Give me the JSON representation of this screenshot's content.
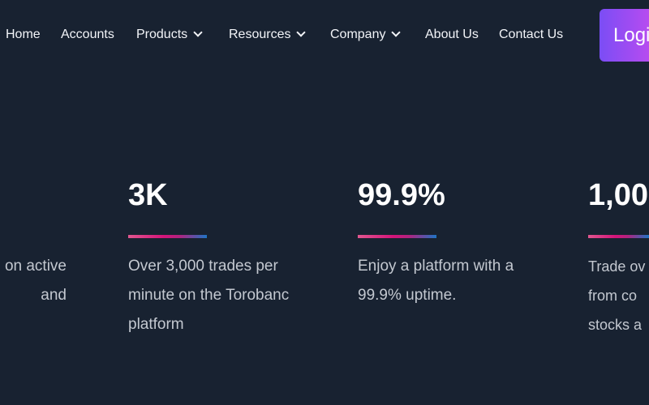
{
  "nav": {
    "items": [
      {
        "label": "Home",
        "dropdown": false
      },
      {
        "label": "Accounts",
        "dropdown": false
      },
      {
        "label": "Products",
        "dropdown": true
      },
      {
        "label": "Resources",
        "dropdown": true
      },
      {
        "label": "Company",
        "dropdown": true
      },
      {
        "label": "About Us",
        "dropdown": false
      },
      {
        "label": "Contact Us",
        "dropdown": false
      }
    ],
    "login_label": "Logi"
  },
  "stats": [
    {
      "value": "",
      "lines": [
        "on active",
        "and",
        ""
      ]
    },
    {
      "value": "3K",
      "lines": [
        "Over 3,000 trades per",
        "minute on the Torobanc",
        "platform"
      ]
    },
    {
      "value": "99.9%",
      "lines": [
        "Enjoy a platform with a",
        "99.9% uptime.",
        ""
      ]
    },
    {
      "value": "1,00",
      "lines": [
        "Trade ov",
        "from co",
        "stocks a"
      ]
    }
  ],
  "colors": {
    "background": "#182231",
    "accent_start": "#7b4df5",
    "accent_end": "#b64cf0"
  }
}
